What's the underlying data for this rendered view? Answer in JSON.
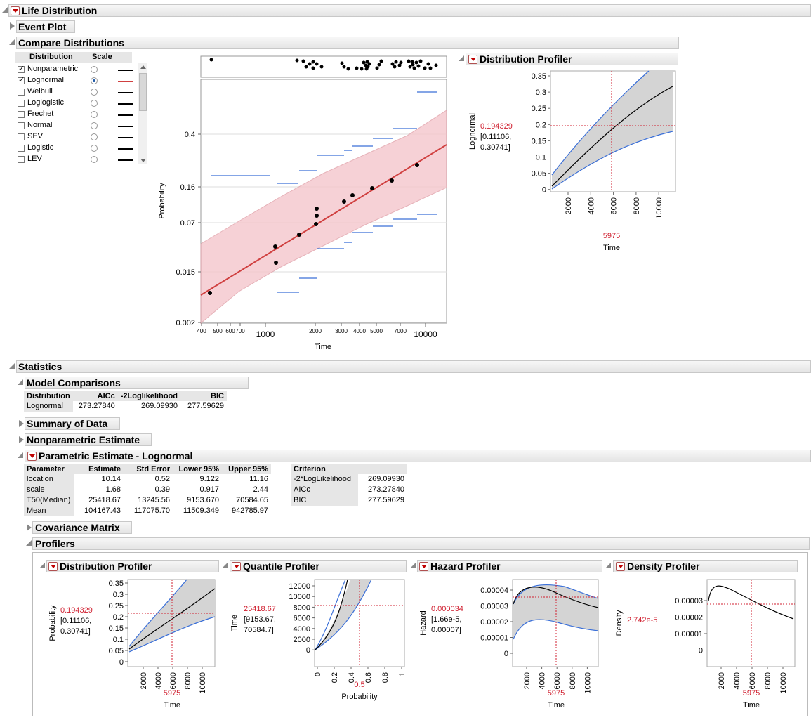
{
  "headers": {
    "life_distribution": "Life Distribution",
    "event_plot": "Event Plot",
    "compare_distributions": "Compare Distributions",
    "distribution_profiler": "Distribution Profiler",
    "statistics": "Statistics",
    "model_comparisons": "Model Comparisons",
    "summary_of_data": "Summary of Data",
    "nonparametric_estimate": "Nonparametric Estimate",
    "parametric_estimate": "Parametric Estimate - Lognormal",
    "covariance_matrix": "Covariance Matrix",
    "profilers": "Profilers",
    "quantile_profiler": "Quantile Profiler",
    "hazard_profiler": "Hazard Profiler",
    "density_profiler": "Density Profiler"
  },
  "dist_list": {
    "col_distribution": "Distribution",
    "col_scale": "Scale",
    "items": [
      {
        "name": "Nonparametric",
        "checked": true,
        "scale": false,
        "line_color": "#000000"
      },
      {
        "name": "Lognormal",
        "checked": true,
        "scale": true,
        "line_color": "#d04040"
      },
      {
        "name": "Weibull",
        "checked": false,
        "scale": false,
        "line_color": "#000000"
      },
      {
        "name": "Loglogistic",
        "checked": false,
        "scale": false,
        "line_color": "#000000"
      },
      {
        "name": "Frechet",
        "checked": false,
        "scale": false,
        "line_color": "#000000"
      },
      {
        "name": "Normal",
        "checked": false,
        "scale": false,
        "line_color": "#000000"
      },
      {
        "name": "SEV",
        "checked": false,
        "scale": false,
        "line_color": "#000000"
      },
      {
        "name": "Logistic",
        "checked": false,
        "scale": false,
        "line_color": "#000000"
      },
      {
        "name": "LEV",
        "checked": false,
        "scale": false,
        "line_color": "#000000"
      }
    ]
  },
  "main_plot": {
    "ylabel": "Probability",
    "xlabel": "Time",
    "y_ticks": [
      "0.4",
      "0.16",
      "0.07",
      "0.015",
      "0.002"
    ],
    "x_minor_ticks": [
      "400",
      "500",
      "600",
      "700",
      "2000",
      "3000",
      "4000",
      "5000",
      "7000"
    ],
    "x_major_ticks": [
      "1000",
      "10000"
    ]
  },
  "top_profiler": {
    "ylabel": "Lognormal",
    "value": "0.194329",
    "interval_line1": "[0.11106,",
    "interval_line2": "0.30741]",
    "y_ticks": [
      "0.35",
      "0.3",
      "0.25",
      "0.2",
      "0.15",
      "0.1",
      "0.05",
      "0"
    ],
    "x_ticks": [
      "2000",
      "4000",
      "6000",
      "8000",
      "10000"
    ],
    "x_value": "5975",
    "xlabel": "Time"
  },
  "model_comparisons": {
    "columns": [
      "Distribution",
      "AICc",
      "-2Loglikelihood",
      "BIC"
    ],
    "rows": [
      [
        "Lognormal",
        "273.27840",
        "269.09930",
        "277.59629"
      ]
    ]
  },
  "parametric": {
    "columns": [
      "Parameter",
      "Estimate",
      "Std Error",
      "Lower 95%",
      "Upper 95%"
    ],
    "rows": [
      [
        "location",
        "10.14",
        "0.52",
        "9.122",
        "11.16"
      ],
      [
        "scale",
        "1.68",
        "0.39",
        "0.917",
        "2.44"
      ],
      [
        "T50(Median)",
        "25418.67",
        "13245.56",
        "9153.670",
        "70584.65"
      ],
      [
        "Mean",
        "104167.43",
        "117075.70",
        "11509.349",
        "942785.97"
      ]
    ],
    "criterion_header": "Criterion",
    "criterion_rows": [
      [
        "-2*LogLikelihood",
        "269.09930"
      ],
      [
        "AICc",
        "273.27840"
      ],
      [
        "BIC",
        "277.59629"
      ]
    ]
  },
  "profilers": {
    "distribution": {
      "ylabel": "Probability",
      "value": "0.194329",
      "interval_line1": "[0.11106,",
      "interval_line2": "0.30741]",
      "y_ticks": [
        "0.35",
        "0.3",
        "0.25",
        "0.2",
        "0.15",
        "0.1",
        "0.05",
        "0"
      ],
      "x_ticks": [
        "2000",
        "4000",
        "6000",
        "8000",
        "10000"
      ],
      "x_value": "5975",
      "xlabel": "Time"
    },
    "quantile": {
      "ylabel": "Time",
      "value": "25418.67",
      "interval_line1": "[9153.67,",
      "interval_line2": "70584.7]",
      "y_ticks": [
        "12000",
        "10000",
        "8000",
        "6000",
        "4000",
        "2000",
        "0"
      ],
      "x_ticks": [
        "0",
        "0.2",
        "0.4",
        "0.6",
        "0.8",
        "1"
      ],
      "x_value": "0.5",
      "xlabel": "Probability"
    },
    "hazard": {
      "ylabel": "Hazard",
      "value": "0.000034",
      "interval_line1": "[1.66e-5,",
      "interval_line2": "0.00007]",
      "y_ticks": [
        "0.00004",
        "0.00003",
        "0.00002",
        "0.00001",
        "0"
      ],
      "x_ticks": [
        "2000",
        "4000",
        "6000",
        "8000",
        "10000"
      ],
      "x_value": "5975",
      "xlabel": "Time"
    },
    "density": {
      "ylabel": "Density",
      "value": "2.742e-5",
      "y_ticks": [
        "0.00003",
        "0.00002",
        "0.00001",
        "0"
      ],
      "x_ticks": [
        "2000",
        "4000",
        "6000",
        "8000",
        "10000"
      ],
      "x_value": "5975",
      "xlabel": "Time"
    }
  },
  "colors": {
    "fit_line": "#d04040",
    "band_fill": "#f5c6cc",
    "confidence_line": "#3a6fd8",
    "profiler_band": "#d4d4d4",
    "crosshair": "#d02030"
  }
}
